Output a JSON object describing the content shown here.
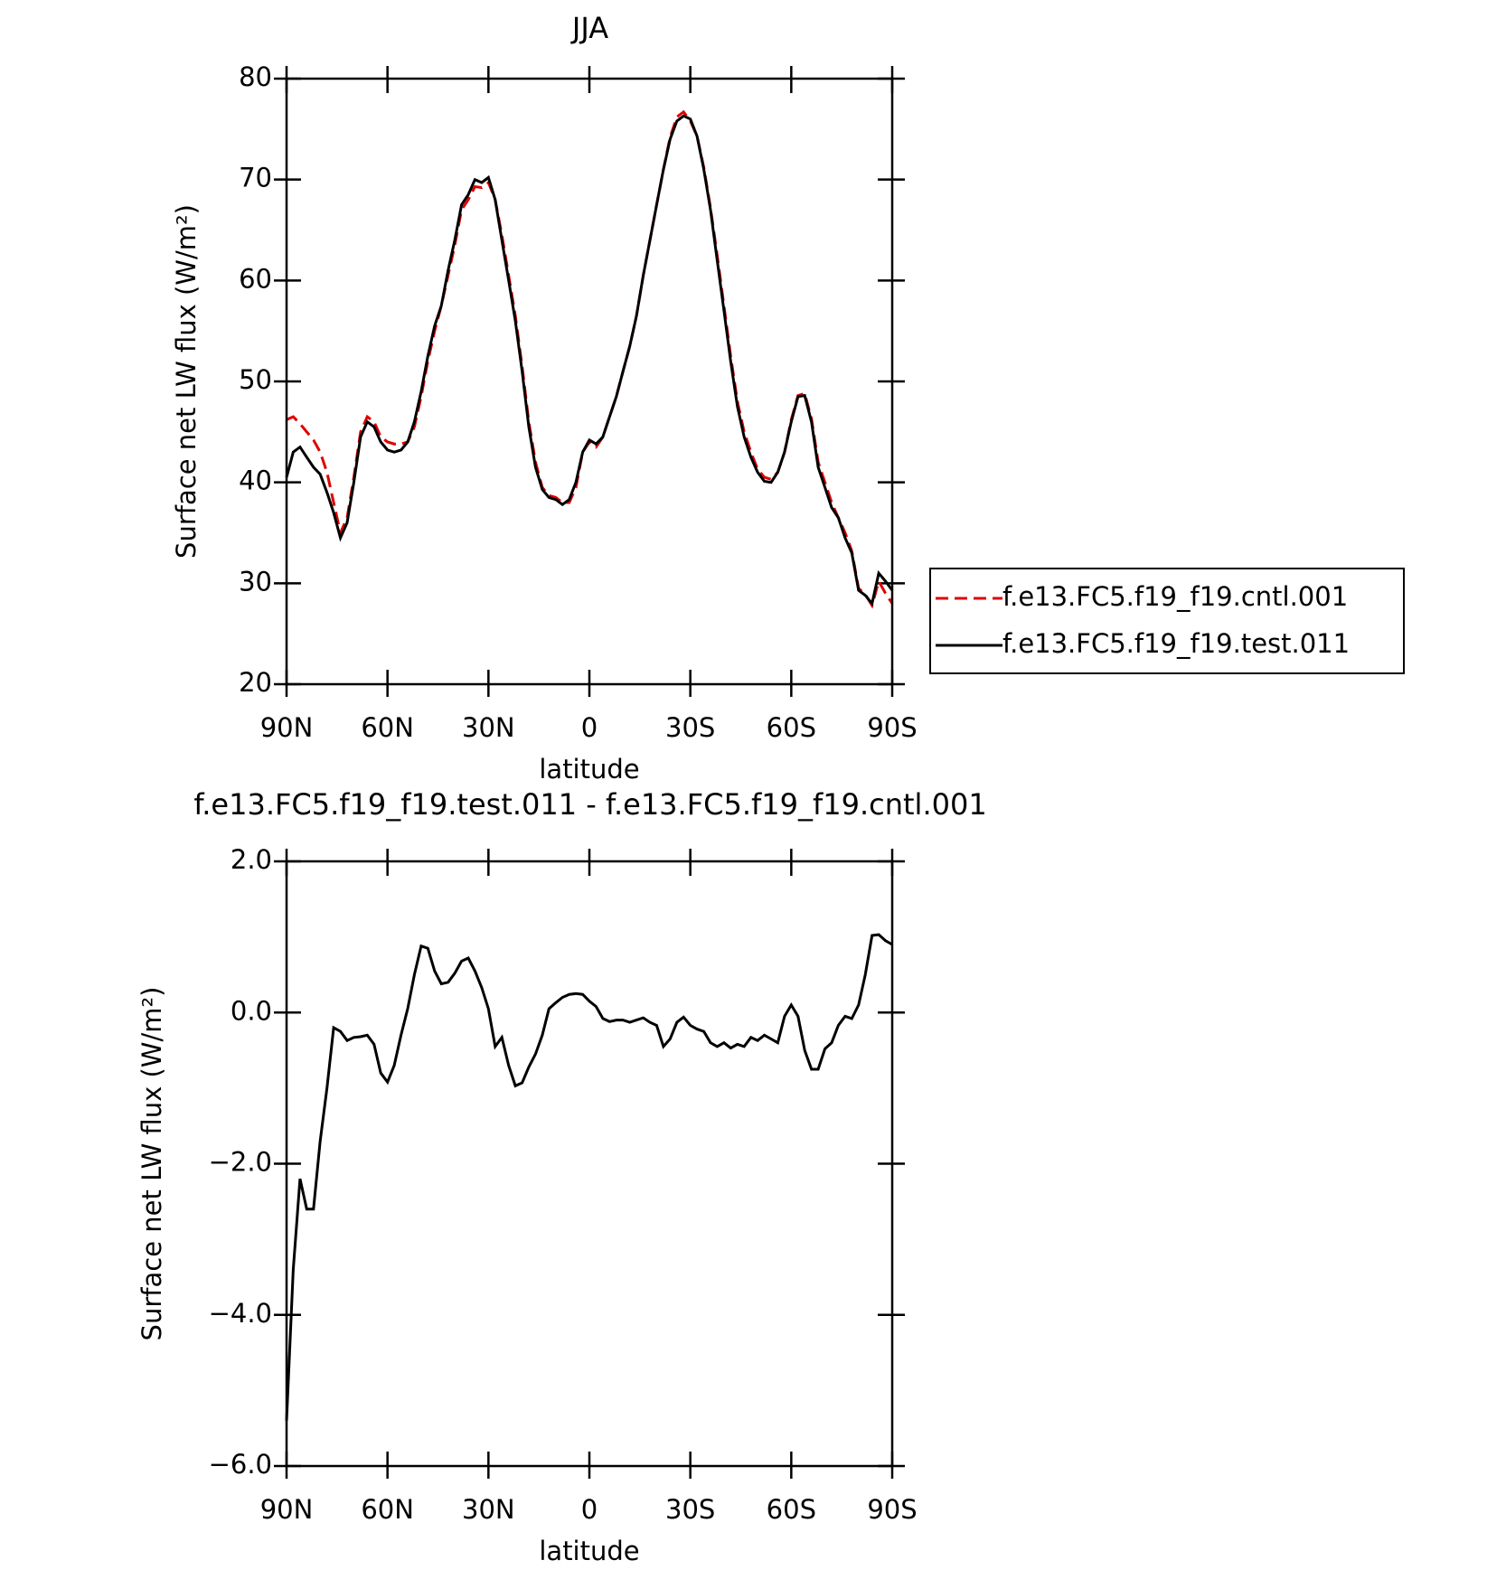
{
  "chart_data": [
    {
      "type": "line",
      "title": "JJA",
      "xlabel": "latitude",
      "ylabel": "Surface net LW flux (W/m²)",
      "x": [
        90,
        88,
        86,
        84,
        82,
        80,
        78,
        76,
        74,
        72,
        70,
        68,
        66,
        64,
        62,
        60,
        58,
        56,
        54,
        52,
        50,
        48,
        46,
        44,
        42,
        40,
        38,
        36,
        34,
        32,
        30,
        28,
        26,
        24,
        22,
        20,
        18,
        16,
        14,
        12,
        10,
        8,
        6,
        4,
        2,
        0,
        -2,
        -4,
        -6,
        -8,
        -10,
        -12,
        -14,
        -16,
        -18,
        -20,
        -22,
        -24,
        -26,
        -28,
        -30,
        -32,
        -34,
        -36,
        -38,
        -40,
        -42,
        -44,
        -46,
        -48,
        -50,
        -52,
        -54,
        -56,
        -58,
        -60,
        -62,
        -64,
        -66,
        -68,
        -70,
        -72,
        -74,
        -76,
        -78,
        -80,
        -82,
        -84,
        -86,
        -88,
        -90
      ],
      "series": [
        {
          "name": "f.e13.FC5.f19_f19.cntl.001",
          "color": "#e00000",
          "dash": "dashed",
          "values": [
            46.2,
            46.5,
            45.8,
            45,
            44.2,
            43,
            41,
            38,
            35,
            36.5,
            40.5,
            45,
            46.5,
            46,
            44.5,
            44,
            43.8,
            43.8,
            44,
            45.5,
            48.5,
            52,
            55,
            57.5,
            60.5,
            63.5,
            67,
            68,
            69.3,
            69.2,
            69.7,
            68,
            64.5,
            60.5,
            56.5,
            51.5,
            46,
            42,
            39.5,
            38.7,
            38.5,
            38,
            38,
            39.5,
            43,
            44,
            43.5,
            44.5,
            46.5,
            48.5,
            51,
            53.5,
            56.5,
            60.5,
            64,
            67.5,
            71,
            74.2,
            76.2,
            76.7,
            75.8,
            74.3,
            71.2,
            67.2,
            62.5,
            57.5,
            52.5,
            48,
            45,
            43,
            41.3,
            40.5,
            40.3,
            41,
            43,
            46.2,
            48.6,
            48.8,
            46.3,
            42,
            40,
            38,
            36.5,
            35,
            33.2,
            29.5,
            28.9,
            27.8,
            30.2,
            29,
            28
          ]
        },
        {
          "name": "f.e13.FC5.f19_f19.test.011",
          "color": "#000000",
          "dash": "solid",
          "values": [
            40.5,
            43,
            43.5,
            42.5,
            41.5,
            40.8,
            39,
            37,
            34.5,
            36,
            40,
            44.5,
            46,
            45.5,
            44,
            43.2,
            43,
            43.2,
            44,
            46,
            49,
            52.5,
            55.5,
            57.5,
            61,
            64,
            67.5,
            68.5,
            70,
            69.7,
            70.2,
            68,
            64,
            60,
            56,
            51,
            45.5,
            41.5,
            39.3,
            38.5,
            38.3,
            37.8,
            38.3,
            40,
            43,
            44.2,
            43.8,
            44.5,
            46.5,
            48.5,
            51,
            53.5,
            56.5,
            60.5,
            64,
            67.5,
            71,
            74,
            75.8,
            76.3,
            76,
            74.3,
            71,
            67,
            62,
            57,
            52,
            47.5,
            44.5,
            42.5,
            41,
            40.1,
            40,
            41,
            43,
            46,
            48.5,
            48.6,
            46,
            41.5,
            39.5,
            37.5,
            36.5,
            34.5,
            33,
            29.3,
            28.8,
            28,
            31,
            30.2,
            29.3
          ]
        }
      ],
      "xlim": [
        90,
        -90
      ],
      "xticks": [
        {
          "value": 90,
          "label": "90N"
        },
        {
          "value": 60,
          "label": "60N"
        },
        {
          "value": 30,
          "label": "30N"
        },
        0,
        {
          "value": -30,
          "label": "30S"
        },
        {
          "value": -60,
          "label": "60S"
        },
        {
          "value": -90,
          "label": "90S"
        }
      ],
      "ylim": [
        20,
        80
      ],
      "yticks": [
        20,
        30,
        40,
        50,
        60,
        70,
        80
      ],
      "legend": "right"
    },
    {
      "type": "line",
      "title": "f.e13.FC5.f19_f19.test.011 - f.e13.FC5.f19_f19.cntl.001",
      "xlabel": "latitude",
      "ylabel": "Surface net LW flux (W/m²)",
      "x": [
        90,
        88,
        86,
        84,
        82,
        80,
        78,
        76,
        74,
        72,
        70,
        68,
        66,
        64,
        62,
        60,
        58,
        56,
        54,
        52,
        50,
        48,
        46,
        44,
        42,
        40,
        38,
        36,
        34,
        32,
        30,
        28,
        26,
        24,
        22,
        20,
        18,
        16,
        14,
        12,
        10,
        8,
        6,
        4,
        2,
        0,
        -2,
        -4,
        -6,
        -8,
        -10,
        -12,
        -14,
        -16,
        -18,
        -20,
        -22,
        -24,
        -26,
        -28,
        -30,
        -32,
        -34,
        -36,
        -38,
        -40,
        -42,
        -44,
        -46,
        -48,
        -50,
        -52,
        -54,
        -56,
        -58,
        -60,
        -62,
        -64,
        -66,
        -68,
        -70,
        -72,
        -74,
        -76,
        -78,
        -80,
        -82,
        -84,
        -86,
        -88,
        -90
      ],
      "series": [
        {
          "color": "#000000",
          "dash": "solid",
          "values": [
            -5.4,
            -3.4,
            -2.2,
            -2.6,
            -2.6,
            -1.7,
            -1.0,
            -0.2,
            -0.25,
            -0.37,
            -0.33,
            -0.32,
            -0.3,
            -0.42,
            -0.8,
            -0.92,
            -0.7,
            -0.3,
            0.05,
            0.5,
            0.88,
            0.85,
            0.55,
            0.38,
            0.4,
            0.52,
            0.68,
            0.72,
            0.55,
            0.33,
            0.05,
            -0.45,
            -0.33,
            -0.7,
            -0.97,
            -0.93,
            -0.72,
            -0.55,
            -0.3,
            0.05,
            0.13,
            0.2,
            0.24,
            0.25,
            0.24,
            0.15,
            0.08,
            -0.08,
            -0.12,
            -0.1,
            -0.1,
            -0.13,
            -0.1,
            -0.07,
            -0.13,
            -0.17,
            -0.45,
            -0.35,
            -0.13,
            -0.06,
            -0.17,
            -0.22,
            -0.25,
            -0.4,
            -0.45,
            -0.4,
            -0.47,
            -0.42,
            -0.45,
            -0.33,
            -0.37,
            -0.3,
            -0.35,
            -0.4,
            -0.05,
            0.1,
            -0.05,
            -0.5,
            -0.75,
            -0.75,
            -0.48,
            -0.4,
            -0.17,
            -0.05,
            -0.08,
            0.1,
            0.5,
            1.02,
            1.03,
            0.95,
            0.9
          ]
        }
      ],
      "xlim": [
        90,
        -90
      ],
      "xticks": [
        {
          "value": 90,
          "label": "90N"
        },
        {
          "value": 60,
          "label": "60N"
        },
        {
          "value": 30,
          "label": "30N"
        },
        0,
        {
          "value": -30,
          "label": "30S"
        },
        {
          "value": -60,
          "label": "60S"
        },
        {
          "value": -90,
          "label": "90S"
        }
      ],
      "ylim": [
        -6,
        2
      ],
      "yticks": [
        {
          "value": -6,
          "label": "−6.0"
        },
        {
          "value": -4,
          "label": "−4.0"
        },
        {
          "value": -2,
          "label": "−2.0"
        },
        {
          "value": 0,
          "label": "0.0"
        },
        {
          "value": 2,
          "label": "2.0"
        }
      ]
    }
  ]
}
